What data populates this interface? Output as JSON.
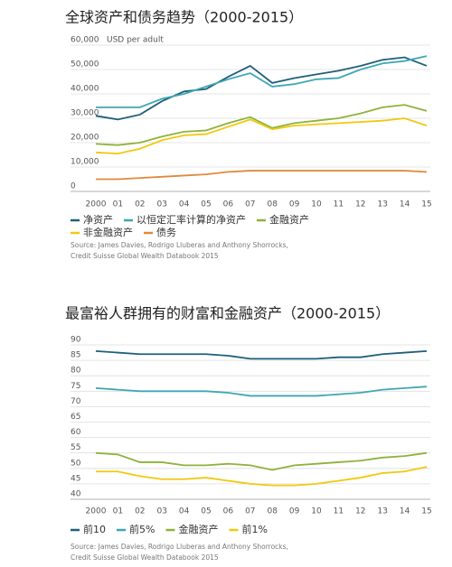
{
  "chart_data": [
    {
      "type": "line",
      "title": "全球资产和债务趋势（2000-2015）",
      "y_unit_label": "USD per adult",
      "categories": [
        "2000",
        "01",
        "02",
        "03",
        "04",
        "05",
        "06",
        "07",
        "08",
        "09",
        "10",
        "11",
        "12",
        "13",
        "14",
        "15"
      ],
      "ylim": [
        0,
        60000
      ],
      "yticks": [
        0,
        {
          "value": 10000,
          "label": "10,000"
        },
        {
          "value": 20000,
          "label": "20,000"
        },
        {
          "value": 30000,
          "label": "30,000"
        },
        {
          "value": 40000,
          "label": "40,000"
        },
        {
          "value": 50000,
          "label": "50,000"
        },
        {
          "value": 60000,
          "label": "60,000"
        }
      ],
      "grid": true,
      "series": [
        {
          "name": "净资产",
          "color": "#1f5f7a",
          "values": [
            31000,
            29500,
            31500,
            37000,
            41000,
            42000,
            47000,
            51500,
            44500,
            46500,
            48000,
            49500,
            51500,
            54000,
            55000,
            51500
          ]
        },
        {
          "name": "以恒定汇率计算的净资产",
          "color": "#3fa7b5",
          "values": [
            34500,
            34500,
            34500,
            38000,
            40000,
            43000,
            46000,
            48500,
            43000,
            44000,
            46000,
            46500,
            50000,
            52500,
            53500,
            55500
          ]
        },
        {
          "name": "金融资产",
          "color": "#8db33a",
          "values": [
            19500,
            19000,
            20000,
            22500,
            24500,
            25000,
            28000,
            30500,
            26000,
            28000,
            29000,
            30000,
            32000,
            34500,
            35500,
            33000
          ]
        },
        {
          "name": "非金融资产",
          "color": "#f2c80f",
          "values": [
            16000,
            15500,
            17500,
            21000,
            23000,
            23500,
            26500,
            29500,
            25500,
            27000,
            27500,
            28000,
            28500,
            29000,
            30000,
            27000
          ]
        },
        {
          "name": "债务",
          "color": "#e08a3c",
          "values": [
            5000,
            5000,
            5500,
            6000,
            6500,
            7000,
            8000,
            8500,
            8500,
            8500,
            8500,
            8500,
            8500,
            8500,
            8500,
            8000
          ]
        }
      ],
      "source": [
        "Source: James Davies, Rodrigo Lluberas and Anthony Shorrocks,",
        "Credit Suisse Global Wealth Databook 2015"
      ]
    },
    {
      "type": "line",
      "title": "最富裕人群拥有的财富和金融资产（2000-2015）",
      "categories": [
        "2000",
        "01",
        "02",
        "03",
        "04",
        "05",
        "06",
        "07",
        "08",
        "09",
        "10",
        "11",
        "12",
        "13",
        "14",
        "15"
      ],
      "ylim": [
        40,
        90
      ],
      "yticks": [
        40,
        45,
        50,
        55,
        60,
        65,
        70,
        75,
        80,
        85,
        90
      ],
      "grid": true,
      "series": [
        {
          "name": "前10",
          "color": "#1f5f7a",
          "values": [
            88,
            87.5,
            87,
            87,
            87,
            87,
            86.5,
            85.5,
            85.5,
            85.5,
            85.5,
            86,
            86,
            87,
            87.5,
            88
          ]
        },
        {
          "name": "前5%",
          "color": "#3fa7b5",
          "values": [
            76,
            75.5,
            75,
            75,
            75,
            75,
            74.5,
            73.5,
            73.5,
            73.5,
            73.5,
            74,
            74.5,
            75.5,
            76,
            76.5
          ]
        },
        {
          "name": "金融资产",
          "color": "#8db33a",
          "values": [
            55,
            54.5,
            52,
            52,
            51,
            51,
            51.5,
            51,
            49.5,
            51,
            51.5,
            52,
            52.5,
            53.5,
            54,
            55
          ]
        },
        {
          "name": "前1%",
          "color": "#f2c80f",
          "values": [
            49,
            49,
            47.5,
            46.5,
            46.5,
            47,
            46,
            45,
            44.5,
            44.5,
            45,
            46,
            47,
            48.5,
            49,
            50.5
          ]
        }
      ],
      "source": [
        "Source: James Davies, Rodrigo Lluberas and Anthony Shorrocks,",
        "Credit Suisse Global Wealth Databook 2015"
      ]
    }
  ]
}
